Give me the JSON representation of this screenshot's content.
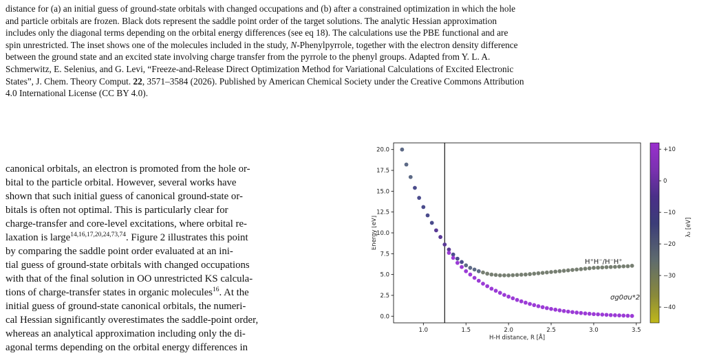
{
  "caption": {
    "line1": "distance for (a) an initial guess of ground-state orbitals with changed occupations and (b) after a constrained optimization in which the hole",
    "line2": "and particle orbitals are frozen. Black dots represent the saddle point order of the target solutions. The analytic Hessian approximation",
    "line3": "includes only the diagonal terms depending on the orbital energy differences (see eq 18). The calculations use the PBE functional and are",
    "line4a": "spin unrestricted. The inset shows one of the molecules included in the study, ",
    "line4_italic": "N",
    "line4b": "-Phenylpyrrole, together with the electron density difference",
    "line5": "between the ground state and an excited state involving charge transfer from the pyrrole to the phenyl groups. Adapted from Y. L. A.",
    "line6": "Schmerwitz, E. Selenius, and G. Levi, “Freeze-and-Release Direct Optimization Method for Variational Calculations of Excited Electronic",
    "line7a": "States”, J. Chem. Theory Comput. ",
    "line7_bold": "22",
    "line7b": ", 3571–3584 (2026). Published by American Chemical Society under the Creative Commons Attribution",
    "line8": "4.0 International License (CC BY 4.0)."
  },
  "body": {
    "l1": "canonical orbitals, an electron is promoted from the hole or-",
    "l2": "bital to the particle orbital.  However, several works have",
    "l3": "shown that such initial guess of canonical ground-state or-",
    "l4": "bitals is often not optimal.  This is particularly clear for",
    "l5": "charge-transfer and core-level excitations, where orbital re-",
    "l6a": "laxation is large",
    "l6sup": "14,16,17,20,24,73,74",
    "l6b": ". Figure 2 illustrates this point",
    "l7": "by comparing the saddle point order evaluated at an ini-",
    "l8": "tial guess of ground-state orbitals with changed occupations",
    "l9": "with that of the final solution in OO unrestricted KS calcula-",
    "l10a": "tions of charge-transfer states in organic molecules",
    "l10sup": "16",
    "l10b": ".  At the",
    "l11": "initial guess of ground-state canonical orbitals, the numeri-",
    "l12": "cal Hessian significantly overestimates the saddle-point order,",
    "l13": "whereas an analytical approximation including only the di-",
    "l14": "agonal terms depending on the orbital energy differences in"
  },
  "chart_data": {
    "type": "scatter",
    "xlabel": "H-H distance, R [Å]",
    "ylabel": "Energy [eV]",
    "xlim": [
      0.65,
      3.55
    ],
    "ylim": [
      -0.8,
      20.8
    ],
    "xticks": [
      "1.0",
      "1.5",
      "2.0",
      "2.5",
      "3.0",
      "3.5"
    ],
    "yticks": [
      "0.0",
      "2.5",
      "5.0",
      "7.5",
      "10.0",
      "12.5",
      "15.0",
      "17.5",
      "20.0"
    ],
    "vertical_line_x": 1.25,
    "colorbar": {
      "label": "λ₂ [eV]",
      "ticks": [
        "+10",
        "0",
        "−10",
        "−20",
        "−30",
        "−40"
      ],
      "range": [
        -45,
        12
      ],
      "colors": [
        "#c0b81a",
        "#6e7e62",
        "#3b2f6e",
        "#5b3294",
        "#8a34be",
        "#9a2fce"
      ]
    },
    "annotations": {
      "upper": "H⁺H⁻/H⁻H⁺",
      "lower": "σg0σu*2"
    },
    "series": [
      {
        "x": [
          0.75,
          0.8,
          0.85,
          0.9,
          0.95,
          1.0,
          1.05,
          1.1,
          1.15,
          1.2,
          1.25,
          1.3,
          1.35,
          1.4,
          1.45,
          1.5,
          1.55,
          1.6,
          1.65,
          1.7,
          1.75,
          1.8,
          1.85,
          1.9,
          1.95,
          2.0,
          2.05,
          2.1,
          2.15,
          2.2,
          2.25,
          2.3,
          2.35,
          2.4,
          2.45,
          2.5,
          2.55,
          2.6,
          2.65,
          2.7,
          2.75,
          2.8,
          2.85,
          2.9,
          2.95,
          3.0,
          3.05,
          3.1,
          3.15,
          3.2,
          3.25,
          3.3,
          3.35,
          3.4,
          3.45
        ],
        "values": [
          20.0,
          18.2,
          16.7,
          15.4,
          14.2,
          13.1,
          12.1,
          11.2,
          10.3,
          9.5,
          8.6,
          8.0,
          7.4,
          6.9,
          6.5,
          6.1,
          5.8,
          5.6,
          5.4,
          5.25,
          5.1,
          5.0,
          4.95,
          4.9,
          4.9,
          4.9,
          4.92,
          4.95,
          4.98,
          5.0,
          5.05,
          5.1,
          5.15,
          5.2,
          5.25,
          5.3,
          5.35,
          5.4,
          5.45,
          5.5,
          5.55,
          5.6,
          5.65,
          5.7,
          5.75,
          5.8,
          5.82,
          5.85,
          5.88,
          5.9,
          5.92,
          5.95,
          5.98,
          6.0,
          6.05
        ],
        "lambda": [
          -5,
          -6,
          -8,
          -10,
          -12,
          -14,
          -16,
          -18,
          -20,
          -22,
          -24,
          -20,
          -16,
          -12,
          -10,
          -8,
          -6,
          -5,
          -4,
          -3,
          -2,
          -2,
          -1,
          -1,
          -1,
          0,
          0,
          0,
          0,
          0,
          0,
          0,
          0,
          0,
          0,
          0,
          0,
          0,
          0,
          0,
          0,
          0,
          0,
          0,
          0,
          0,
          0,
          0,
          0,
          0,
          0,
          0,
          0,
          0,
          0
        ]
      },
      {
        "x": [
          1.3,
          1.35,
          1.4,
          1.45,
          1.5,
          1.55,
          1.6,
          1.65,
          1.7,
          1.75,
          1.8,
          1.85,
          1.9,
          1.95,
          2.0,
          2.05,
          2.1,
          2.15,
          2.2,
          2.25,
          2.3,
          2.35,
          2.4,
          2.45,
          2.5,
          2.55,
          2.6,
          2.65,
          2.7,
          2.75,
          2.8,
          2.85,
          2.9,
          2.95,
          3.0,
          3.05,
          3.1,
          3.15,
          3.2,
          3.25,
          3.3,
          3.35,
          3.4,
          3.45
        ],
        "values": [
          7.6,
          7.0,
          6.4,
          5.9,
          5.4,
          5.0,
          4.6,
          4.25,
          3.9,
          3.6,
          3.3,
          3.05,
          2.8,
          2.55,
          2.35,
          2.15,
          1.95,
          1.78,
          1.62,
          1.47,
          1.33,
          1.2,
          1.08,
          0.97,
          0.87,
          0.78,
          0.7,
          0.62,
          0.55,
          0.49,
          0.43,
          0.38,
          0.33,
          0.29,
          0.25,
          0.22,
          0.19,
          0.16,
          0.13,
          0.11,
          0.09,
          0.07,
          0.05,
          0.03
        ],
        "lambda": [
          -30,
          -32,
          -34,
          -36,
          -38,
          -40,
          -40,
          -40,
          -40,
          -40,
          -40,
          -40,
          -40,
          -40,
          -40,
          -40,
          -40,
          -40,
          -40,
          -40,
          -40,
          -40,
          -40,
          -40,
          -40,
          -40,
          -40,
          -40,
          -40,
          -40,
          -40,
          -40,
          -40,
          -40,
          -40,
          -40,
          -40,
          -40,
          -40,
          -40,
          -40,
          -40,
          -40,
          -40
        ]
      }
    ]
  }
}
